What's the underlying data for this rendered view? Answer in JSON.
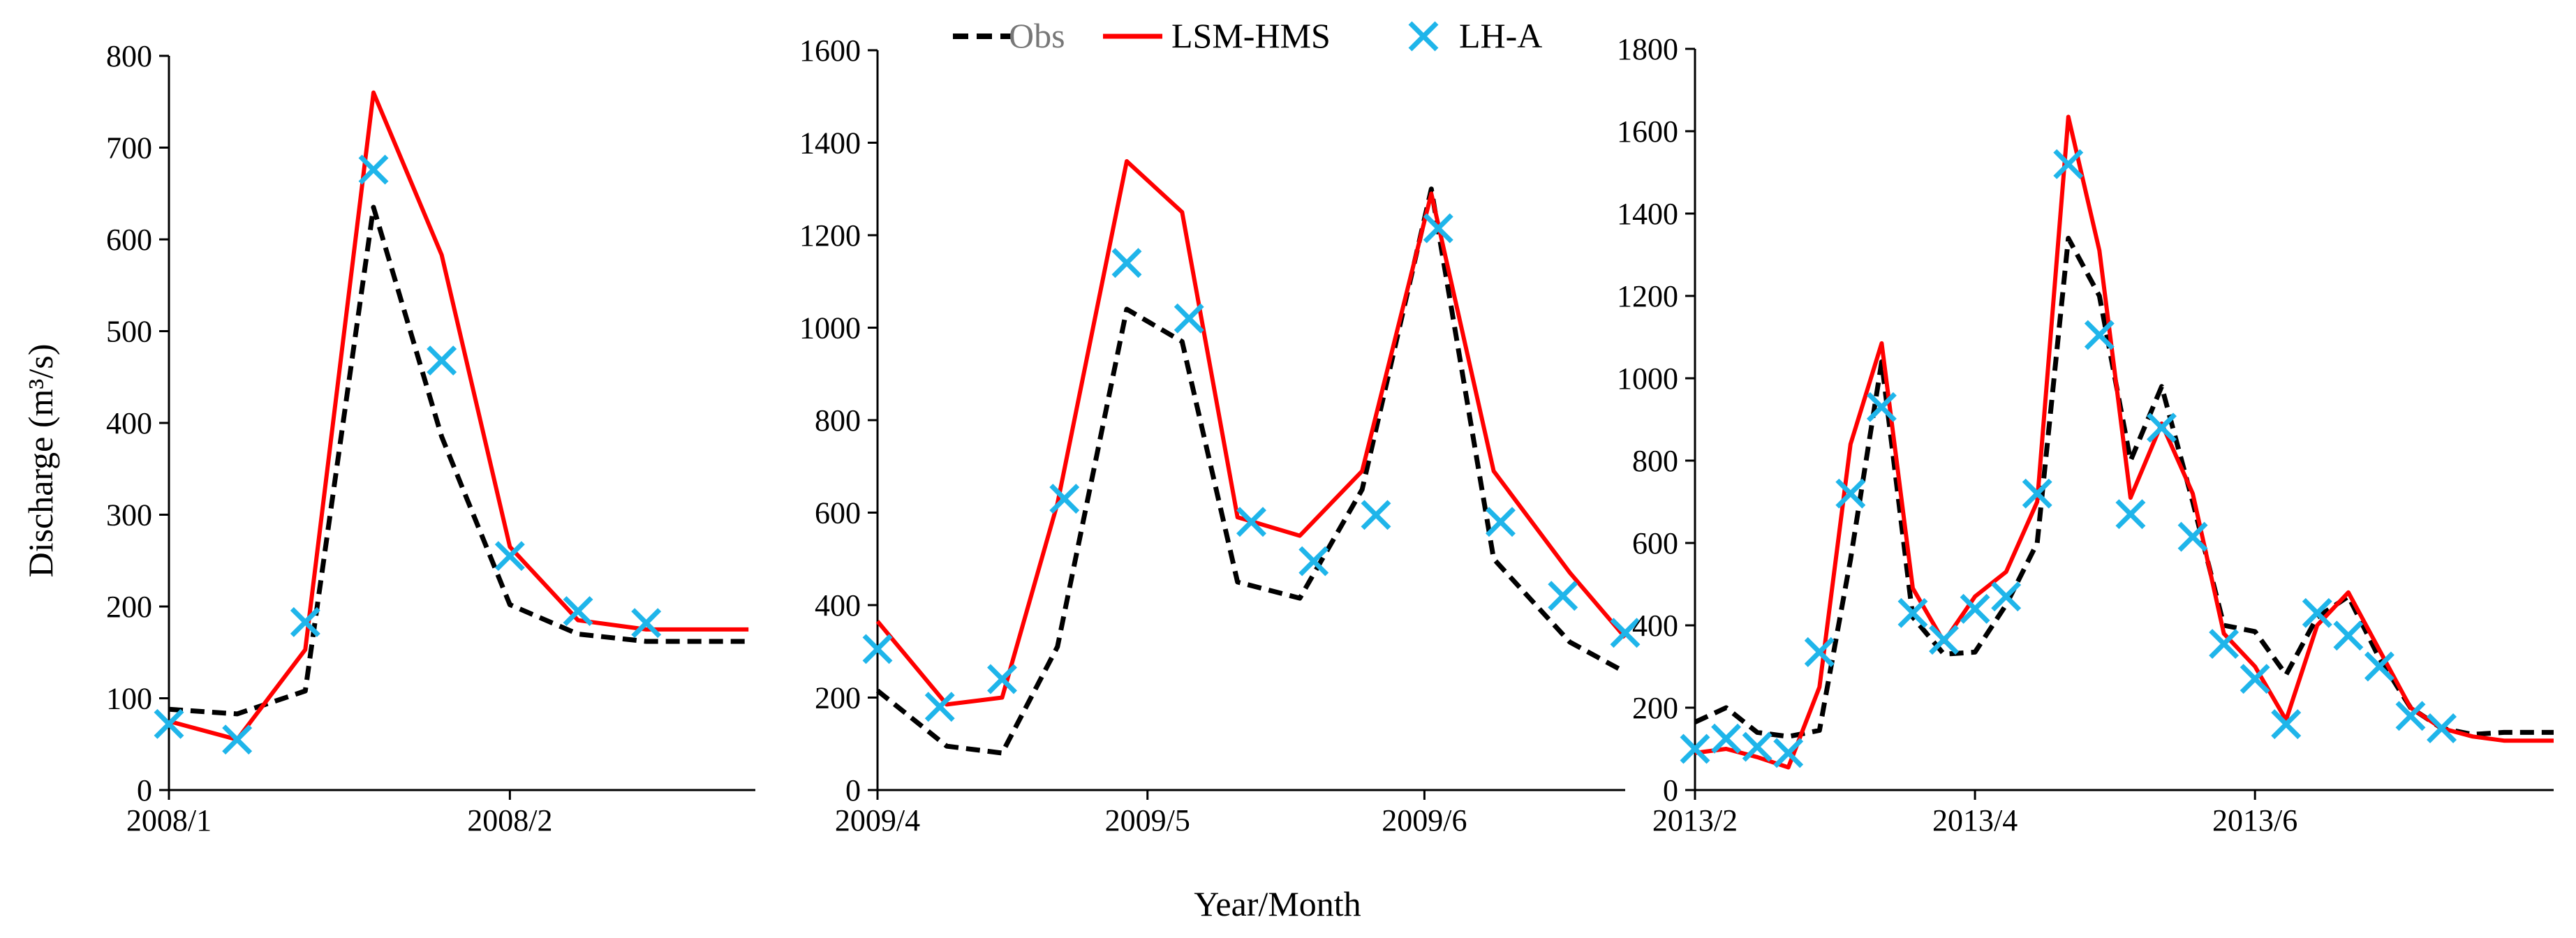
{
  "figure": {
    "ylabel": "Discharge (m³/s)",
    "xlabel": "Year/Month",
    "legend": {
      "position": "top-center",
      "items": [
        {
          "key": "obs",
          "label": "Obs",
          "style": "dashed-line",
          "color": "#000000"
        },
        {
          "key": "lsm",
          "label": "LSM-HMS",
          "style": "solid-line",
          "color": "#ff0000"
        },
        {
          "key": "lha",
          "label": "LH-A",
          "style": "x-marker",
          "color": "#1fb5ea"
        }
      ]
    }
  },
  "chart_data": [
    {
      "type": "line",
      "title": "",
      "xlabel": "",
      "ylabel": "Discharge (m³/s)",
      "ylim": [
        0,
        800
      ],
      "yticks": [
        0,
        100,
        200,
        300,
        400,
        500,
        600,
        700,
        800
      ],
      "xlim": [
        0,
        8.6
      ],
      "xticks": [
        {
          "x": 0,
          "label": "2008/1"
        },
        {
          "x": 5,
          "label": "2008/2"
        }
      ],
      "series": [
        {
          "name": "Obs",
          "style": "dashed",
          "color": "#000000",
          "x": [
            0,
            1,
            2,
            3,
            4,
            5,
            6,
            7,
            8.5
          ],
          "values": [
            88,
            83,
            108,
            635,
            385,
            202,
            170,
            162,
            162
          ]
        },
        {
          "name": "LSM-HMS",
          "style": "solid",
          "color": "#ff0000",
          "x": [
            0,
            1,
            2,
            3,
            4,
            5,
            6,
            7,
            8.5
          ],
          "values": [
            75,
            55,
            153,
            760,
            583,
            265,
            185,
            175,
            175
          ]
        },
        {
          "name": "LH-A",
          "style": "marker-x",
          "color": "#1fb5ea",
          "x": [
            0,
            1,
            2,
            3,
            4,
            5,
            6,
            7
          ],
          "values": [
            72,
            55,
            183,
            676,
            468,
            255,
            195,
            182
          ]
        }
      ]
    },
    {
      "type": "line",
      "title": "",
      "xlabel": "Year/Month",
      "ylabel": "",
      "ylim": [
        0,
        1600
      ],
      "yticks": [
        0,
        200,
        400,
        600,
        800,
        1000,
        1200,
        1400,
        1600
      ],
      "xlim": [
        0,
        10.8
      ],
      "xticks": [
        {
          "x": 0,
          "label": "2009/4"
        },
        {
          "x": 3.9,
          "label": "2009/5"
        },
        {
          "x": 7.9,
          "label": "2009/6"
        }
      ],
      "series": [
        {
          "name": "Obs",
          "style": "dashed",
          "color": "#000000",
          "x": [
            0,
            1,
            1.8,
            2.6,
            3.6,
            4.4,
            5.2,
            6.1,
            7.0,
            8.0,
            8.9,
            10.0,
            10.8
          ],
          "values": [
            215,
            95,
            80,
            310,
            1040,
            970,
            450,
            415,
            650,
            1300,
            500,
            320,
            255
          ]
        },
        {
          "name": "LSM-HMS",
          "style": "solid",
          "color": "#ff0000",
          "x": [
            0,
            1,
            1.8,
            2.6,
            3.6,
            4.4,
            5.2,
            6.1,
            7.0,
            8.0,
            8.9,
            10.0,
            10.8
          ],
          "values": [
            365,
            185,
            200,
            620,
            1360,
            1250,
            590,
            550,
            690,
            1290,
            690,
            470,
            330
          ]
        },
        {
          "name": "LH-A",
          "style": "marker-x",
          "color": "#1fb5ea",
          "x": [
            0,
            0.9,
            1.8,
            2.7,
            3.6,
            4.5,
            5.4,
            6.3,
            7.2,
            8.1,
            9.0,
            9.9,
            10.8
          ],
          "values": [
            305,
            180,
            240,
            630,
            1140,
            1020,
            580,
            495,
            595,
            1215,
            580,
            420,
            340
          ]
        }
      ]
    },
    {
      "type": "line",
      "title": "",
      "xlabel": "",
      "ylabel": "",
      "ylim": [
        0,
        1800
      ],
      "yticks": [
        0,
        200,
        400,
        600,
        800,
        1000,
        1200,
        1400,
        1600,
        1800
      ],
      "xlim": [
        0,
        27.6
      ],
      "xticks": [
        {
          "x": 0,
          "label": "2013/2"
        },
        {
          "x": 9,
          "label": "2013/4"
        },
        {
          "x": 18,
          "label": "2013/6"
        }
      ],
      "series": [
        {
          "name": "Obs",
          "style": "dashed",
          "color": "#000000",
          "x": [
            0,
            1,
            2,
            3,
            4,
            5,
            6,
            7,
            8,
            9,
            10,
            11,
            12,
            13,
            14,
            15,
            16,
            17,
            18,
            19,
            20,
            21,
            22,
            23,
            24,
            25,
            26,
            27,
            27.6
          ],
          "values": [
            165,
            200,
            140,
            130,
            145,
            560,
            1040,
            420,
            330,
            335,
            450,
            600,
            1340,
            1200,
            800,
            980,
            700,
            400,
            385,
            280,
            420,
            470,
            320,
            200,
            150,
            135,
            140,
            140,
            140
          ]
        },
        {
          "name": "LSM-HMS",
          "style": "solid",
          "color": "#ff0000",
          "x": [
            0,
            1,
            2,
            3,
            4,
            5,
            6,
            7,
            8,
            9,
            10,
            11,
            12,
            13,
            14,
            15,
            16,
            17,
            18,
            19,
            20,
            21,
            22,
            23,
            24,
            25,
            26,
            27,
            27.6
          ],
          "values": [
            90,
            100,
            80,
            55,
            250,
            840,
            1085,
            490,
            360,
            470,
            530,
            700,
            1635,
            1310,
            710,
            890,
            720,
            380,
            300,
            170,
            400,
            480,
            340,
            200,
            150,
            130,
            120,
            120,
            120
          ]
        },
        {
          "name": "LH-A",
          "style": "marker-x",
          "color": "#1fb5ea",
          "x": [
            0,
            1,
            2,
            3,
            4,
            5,
            6,
            7,
            8,
            9,
            10,
            11,
            12,
            13,
            14,
            15,
            16,
            17,
            18,
            19,
            20,
            21,
            22,
            23,
            24
          ],
          "values": [
            100,
            125,
            105,
            90,
            335,
            720,
            930,
            430,
            365,
            440,
            470,
            720,
            1520,
            1105,
            670,
            880,
            615,
            355,
            270,
            160,
            430,
            375,
            300,
            180,
            150
          ]
        }
      ]
    }
  ]
}
